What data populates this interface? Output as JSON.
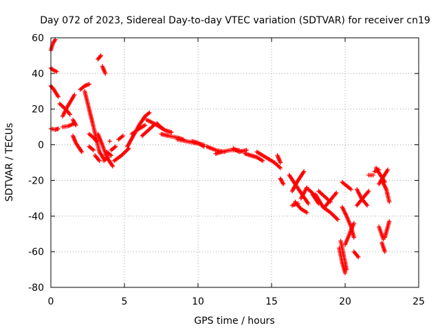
{
  "chart_data": {
    "type": "scatter",
    "title": "Day 072 of 2023, Sidereal Day-to-day VTEC variation (SDTVAR) for receiver cn19",
    "xlabel": "GPS time / hours",
    "ylabel": "SDTVAR / TECUs",
    "xlim": [
      0,
      25
    ],
    "ylim": [
      -80,
      60
    ],
    "xticks": [
      0,
      5,
      10,
      15,
      20,
      25
    ],
    "yticks": [
      -80,
      -60,
      -40,
      -20,
      0,
      20,
      40,
      60
    ],
    "grid": true,
    "marker": "+",
    "color": "#ff0000",
    "segments": [
      {
        "x": [
          0.0,
          0.15,
          0.3
        ],
        "y": [
          53,
          57,
          59
        ]
      },
      {
        "x": [
          0.0,
          0.15,
          0.4
        ],
        "y": [
          43,
          42,
          41
        ]
      },
      {
        "x": [
          0.0,
          0.2,
          0.5
        ],
        "y": [
          33,
          31,
          27
        ]
      },
      {
        "x": [
          0.0,
          0.3,
          0.5
        ],
        "y": [
          9,
          8.5,
          9
        ]
      },
      {
        "x": [
          0.6,
          1.0,
          1.3
        ],
        "y": [
          23,
          20,
          17
        ]
      },
      {
        "x": [
          0.8,
          1.1,
          1.6
        ],
        "y": [
          16,
          21,
          28
        ]
      },
      {
        "x": [
          0.8,
          1.2,
          1.6
        ],
        "y": [
          10,
          10.5,
          12
        ]
      },
      {
        "x": [
          1.5,
          1.7
        ],
        "y": [
          14,
          11
        ]
      },
      {
        "x": [
          1.5,
          1.7,
          2.1
        ],
        "y": [
          5,
          1,
          -4
        ]
      },
      {
        "x": [
          2.0,
          2.3,
          2.6
        ],
        "y": [
          31,
          33,
          34
        ]
      },
      {
        "x": [
          2.3,
          2.6,
          2.9,
          3.3,
          3.6
        ],
        "y": [
          30,
          20,
          10,
          -4,
          -8
        ]
      },
      {
        "x": [
          2.6,
          2.9
        ],
        "y": [
          -1,
          -3
        ]
      },
      {
        "x": [
          2.6,
          2.9,
          3.1
        ],
        "y": [
          6,
          4,
          2
        ]
      },
      {
        "x": [
          3.0,
          3.3
        ],
        "y": [
          -6,
          -9
        ]
      },
      {
        "x": [
          3.2,
          3.4
        ],
        "y": [
          48,
          50
        ]
      },
      {
        "x": [
          3.5,
          3.7
        ],
        "y": [
          44,
          40
        ]
      },
      {
        "x": [
          3.2,
          3.5,
          3.8,
          4.2
        ],
        "y": [
          6,
          0,
          -7,
          -12
        ]
      },
      {
        "x": [
          3.6,
          3.9
        ],
        "y": [
          -9,
          -7
        ]
      },
      {
        "x": [
          3.8,
          4.1
        ],
        "y": [
          -4,
          -6
        ]
      },
      {
        "x": [
          4.0
        ],
        "y": [
          2
        ]
      },
      {
        "x": [
          4.1,
          4.4
        ],
        "y": [
          -3,
          -1
        ]
      },
      {
        "x": [
          4.3,
          4.8,
          5.3
        ],
        "y": [
          -9,
          -6,
          -2
        ]
      },
      {
        "x": [
          4.6,
          4.9
        ],
        "y": [
          3,
          5
        ]
      },
      {
        "x": [
          5.2,
          5.6,
          6.0,
          6.4,
          6.7
        ],
        "y": [
          -1,
          5,
          11,
          16,
          18
        ]
      },
      {
        "x": [
          5.5,
          6.0,
          6.4
        ],
        "y": [
          6,
          9,
          11
        ]
      },
      {
        "x": [
          6.2,
          6.6,
          7.0
        ],
        "y": [
          5,
          8,
          11
        ]
      },
      {
        "x": [
          6.5,
          7.0,
          7.4,
          7.8,
          8.2
        ],
        "y": [
          14,
          12,
          10,
          8,
          7
        ]
      },
      {
        "x": [
          7.5,
          8.0,
          8.6,
          9.0
        ],
        "y": [
          6,
          5,
          4,
          3
        ]
      },
      {
        "x": [
          7.2,
          7.6
        ],
        "y": [
          12,
          9
        ]
      },
      {
        "x": [
          8.6,
          9.2,
          9.8,
          10.4
        ],
        "y": [
          3,
          2,
          1,
          0
        ]
      },
      {
        "x": [
          9.6,
          10.0,
          10.4
        ],
        "y": [
          2,
          1,
          -1
        ]
      },
      {
        "x": [
          10.6,
          11.2,
          11.8
        ],
        "y": [
          -1,
          -3,
          -4
        ]
      },
      {
        "x": [
          11.2,
          11.6,
          12.2,
          12.8
        ],
        "y": [
          -5,
          -4,
          -3,
          -3
        ]
      },
      {
        "x": [
          12.4,
          12.8,
          13.3
        ],
        "y": [
          -2,
          -4,
          -3
        ]
      },
      {
        "x": [
          13.2,
          13.6,
          14.0,
          14.4
        ],
        "y": [
          -5,
          -6,
          -7,
          -9
        ]
      },
      {
        "x": [
          14.0,
          14.4,
          14.8
        ],
        "y": [
          -4,
          -6,
          -8
        ]
      },
      {
        "x": [
          14.8,
          15.2,
          15.6
        ],
        "y": [
          -8,
          -10,
          -13
        ]
      },
      {
        "x": [
          15.4,
          15.6
        ],
        "y": [
          -6,
          -10
        ]
      },
      {
        "x": [
          15.6,
          15.8
        ],
        "y": [
          -19,
          -22
        ]
      },
      {
        "x": [
          16.2,
          16.6,
          17.0,
          17.5
        ],
        "y": [
          -17,
          -22,
          -27,
          -33
        ]
      },
      {
        "x": [
          16.4,
          16.8,
          17.2
        ],
        "y": [
          -26,
          -20,
          -15
        ]
      },
      {
        "x": [
          16.6,
          17.0,
          17.4
        ],
        "y": [
          -32,
          -36,
          -38
        ]
      },
      {
        "x": [
          16.4,
          16.8
        ],
        "y": [
          -34,
          -33
        ]
      },
      {
        "x": [
          17.0,
          17.4
        ],
        "y": [
          -30,
          -24
        ]
      },
      {
        "x": [
          17.8,
          18.2
        ],
        "y": [
          -28,
          -33
        ]
      },
      {
        "x": [
          17.5,
          17.9
        ],
        "y": [
          -25,
          -28
        ]
      },
      {
        "x": [
          18.2,
          18.6,
          19.0
        ],
        "y": [
          -26,
          -29,
          -32
        ]
      },
      {
        "x": [
          18.6,
          19.0,
          19.4
        ],
        "y": [
          -35,
          -31,
          -27
        ]
      },
      {
        "x": [
          18.0,
          18.5,
          19.0,
          19.5
        ],
        "y": [
          -28,
          -35,
          -38,
          -42
        ]
      },
      {
        "x": [
          19.7,
          19.9,
          20.1
        ],
        "y": [
          -54,
          -62,
          -70
        ]
      },
      {
        "x": [
          19.6,
          19.8,
          20.0
        ],
        "y": [
          -58,
          -66,
          -72
        ]
      },
      {
        "x": [
          19.8,
          20.1,
          20.4
        ],
        "y": [
          -21,
          -23,
          -25
        ]
      },
      {
        "x": [
          19.8,
          20.1,
          20.4,
          20.6
        ],
        "y": [
          -35,
          -40,
          -46,
          -52
        ]
      },
      {
        "x": [
          20.0,
          20.3,
          20.6
        ],
        "y": [
          -56,
          -50,
          -44
        ]
      },
      {
        "x": [
          20.6,
          20.9
        ],
        "y": [
          -60,
          -63
        ]
      },
      {
        "x": [
          20.8,
          21.1,
          21.5
        ],
        "y": [
          -25,
          -30,
          -34
        ]
      },
      {
        "x": [
          20.8,
          21.2,
          21.6
        ],
        "y": [
          -34,
          -30,
          -26
        ]
      },
      {
        "x": [
          21.6,
          21.9
        ],
        "y": [
          -17,
          -17
        ]
      },
      {
        "x": [
          22.0,
          22.3
        ],
        "y": [
          -15,
          -14
        ]
      },
      {
        "x": [
          22.1,
          22.4,
          22.7
        ],
        "y": [
          -13,
          -17,
          -21
        ]
      },
      {
        "x": [
          22.3,
          22.6,
          22.9
        ],
        "y": [
          -22,
          -18,
          -14
        ]
      },
      {
        "x": [
          22.5,
          22.8,
          23.0
        ],
        "y": [
          -20,
          -25,
          -32
        ]
      },
      {
        "x": [
          22.3,
          22.6
        ],
        "y": [
          -46,
          -53
        ]
      },
      {
        "x": [
          22.7,
          23.0
        ],
        "y": [
          -52,
          -43
        ]
      },
      {
        "x": [
          22.5,
          22.7
        ],
        "y": [
          -55,
          -60
        ]
      }
    ]
  }
}
